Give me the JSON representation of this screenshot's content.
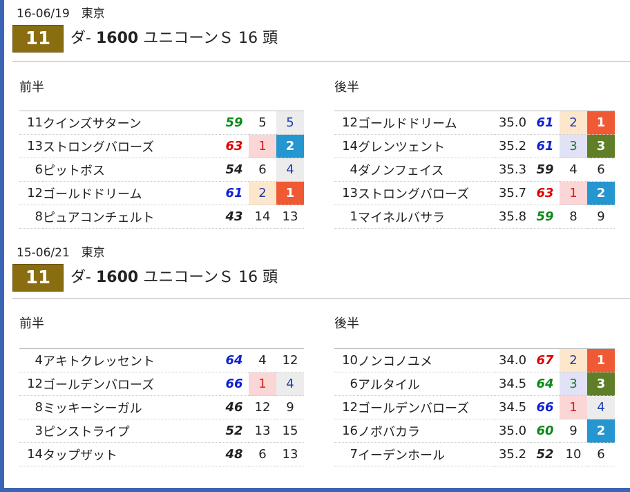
{
  "races": [
    {
      "date": "16-06/19　東京",
      "race_no": "11",
      "surface": "ダ-",
      "distance": "1600",
      "name": "ユニコーンＳ",
      "heads": "16 頭",
      "first_half": {
        "label": "前半",
        "rows": [
          {
            "num": "11",
            "name": "クインズサターン",
            "rating": "59",
            "rcolor": "c-green",
            "a": "5",
            "a_style": "b-plain",
            "b": "5",
            "b_style": "b-gray"
          },
          {
            "num": "13",
            "name": "ストロングバローズ",
            "rating": "63",
            "rcolor": "c-red",
            "a": "1",
            "a_style": "b-pink",
            "b": "2",
            "b_style": "b-blue"
          },
          {
            "num": "6",
            "name": "ピットボス",
            "rating": "54",
            "rcolor": "c-black",
            "a": "6",
            "a_style": "b-plain",
            "b": "4",
            "b_style": "b-gray"
          },
          {
            "num": "12",
            "name": "ゴールドドリーム",
            "rating": "61",
            "rcolor": "c-blue",
            "a": "2",
            "a_style": "b-peach",
            "b": "1",
            "b_style": "b-orange"
          },
          {
            "num": "8",
            "name": "ピュアコンチェルト",
            "rating": "43",
            "rcolor": "c-black",
            "a": "14",
            "a_style": "b-plain",
            "b": "13",
            "b_style": "b-plain"
          }
        ]
      },
      "second_half": {
        "label": "後半",
        "rows": [
          {
            "num": "12",
            "name": "ゴールドドリーム",
            "time": "35.0",
            "rating": "61",
            "rcolor": "c-blue",
            "a": "2",
            "a_style": "b-peach",
            "b": "1",
            "b_style": "b-orange"
          },
          {
            "num": "14",
            "name": "グレンツェント",
            "time": "35.2",
            "rating": "61",
            "rcolor": "c-blue",
            "a": "3",
            "a_style": "b-lav",
            "b": "3",
            "b_style": "b-olive"
          },
          {
            "num": "4",
            "name": "ダノンフェイス",
            "time": "35.3",
            "rating": "59",
            "rcolor": "c-black",
            "a": "4",
            "a_style": "b-plain",
            "b": "6",
            "b_style": "b-plain"
          },
          {
            "num": "13",
            "name": "ストロングバローズ",
            "time": "35.7",
            "rating": "63",
            "rcolor": "c-red",
            "a": "1",
            "a_style": "b-pink",
            "b": "2",
            "b_style": "b-blue"
          },
          {
            "num": "1",
            "name": "マイネルバサラ",
            "time": "35.8",
            "rating": "59",
            "rcolor": "c-green",
            "a": "8",
            "a_style": "b-plain",
            "b": "9",
            "b_style": "b-plain"
          }
        ]
      }
    },
    {
      "date": "15-06/21　東京",
      "race_no": "11",
      "surface": "ダ-",
      "distance": "1600",
      "name": "ユニコーンＳ",
      "heads": "16 頭",
      "first_half": {
        "label": "前半",
        "rows": [
          {
            "num": "4",
            "name": "アキトクレッセント",
            "rating": "64",
            "rcolor": "c-blue",
            "a": "4",
            "a_style": "b-plain",
            "b": "12",
            "b_style": "b-plain"
          },
          {
            "num": "12",
            "name": "ゴールデンバローズ",
            "rating": "66",
            "rcolor": "c-blue",
            "a": "1",
            "a_style": "b-pink",
            "b": "4",
            "b_style": "b-gray"
          },
          {
            "num": "8",
            "name": "ミッキーシーガル",
            "rating": "46",
            "rcolor": "c-black",
            "a": "12",
            "a_style": "b-plain",
            "b": "9",
            "b_style": "b-plain"
          },
          {
            "num": "3",
            "name": "ピンストライプ",
            "rating": "52",
            "rcolor": "c-black",
            "a": "13",
            "a_style": "b-plain",
            "b": "15",
            "b_style": "b-plain"
          },
          {
            "num": "14",
            "name": "タップザット",
            "rating": "48",
            "rcolor": "c-black",
            "a": "6",
            "a_style": "b-plain",
            "b": "13",
            "b_style": "b-plain"
          }
        ]
      },
      "second_half": {
        "label": "後半",
        "rows": [
          {
            "num": "10",
            "name": "ノンコノユメ",
            "time": "34.0",
            "rating": "67",
            "rcolor": "c-red",
            "a": "2",
            "a_style": "b-peach",
            "b": "1",
            "b_style": "b-orange"
          },
          {
            "num": "6",
            "name": "アルタイル",
            "time": "34.5",
            "rating": "64",
            "rcolor": "c-green",
            "a": "3",
            "a_style": "b-lav",
            "b": "3",
            "b_style": "b-olive"
          },
          {
            "num": "12",
            "name": "ゴールデンバローズ",
            "time": "34.5",
            "rating": "66",
            "rcolor": "c-blue",
            "a": "1",
            "a_style": "b-pink",
            "b": "4",
            "b_style": "b-gray"
          },
          {
            "num": "16",
            "name": "ノボバカラ",
            "time": "35.0",
            "rating": "60",
            "rcolor": "c-green",
            "a": "9",
            "a_style": "b-plain",
            "b": "2",
            "b_style": "b-blue"
          },
          {
            "num": "7",
            "name": "イーデンホール",
            "time": "35.2",
            "rating": "52",
            "rcolor": "c-black",
            "a": "10",
            "a_style": "b-plain",
            "b": "6",
            "b_style": "b-plain"
          }
        ]
      }
    }
  ],
  "colors": {
    "race_badge": "#8a6d10",
    "rank1": "#ef5a35",
    "rank2": "#2596cf",
    "rank3": "#5f7e28",
    "frame": "#3a64b4"
  }
}
